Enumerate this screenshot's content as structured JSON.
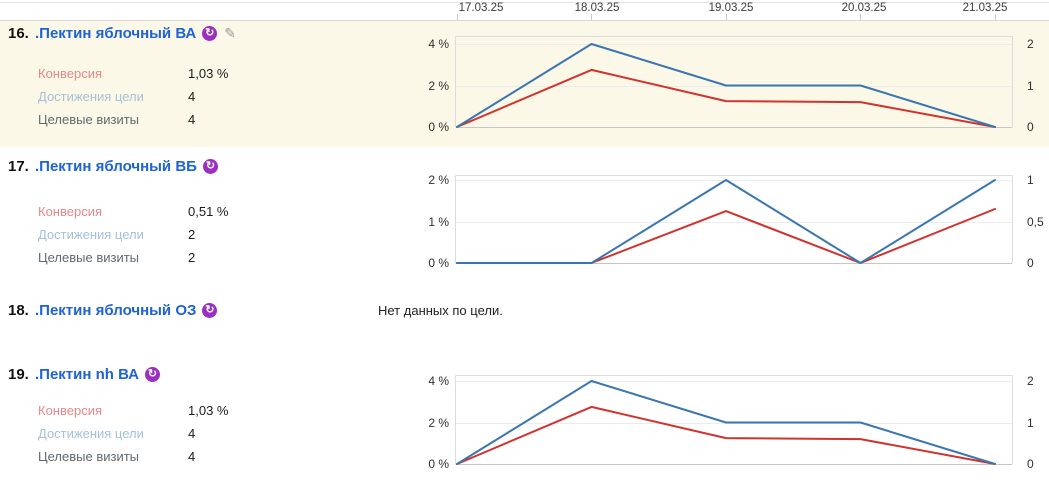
{
  "colors": {
    "title_link_blue": "#1e63d5",
    "conversion_line_red": "#d2322d",
    "reaches_line_blue": "#3a76b0",
    "conversion_label": "#e5888a",
    "reaches_label": "#a6c0d6",
    "visits_label": "#5f6a70",
    "highlighted_row_bg": "#fcf8e8",
    "goal_icon_bg": "#9d2fc0"
  },
  "icons": {
    "goal_glyph": "↻",
    "edit_glyph": "✎"
  },
  "dates": [
    "17.03.25",
    "18.03.25",
    "19.03.25",
    "20.03.25",
    "21.03.25"
  ],
  "rows": [
    {
      "index": "16.",
      "title": ".Пектин яблочный ВА",
      "metrics": [
        {
          "label": "Конверсия",
          "value": "1,03 %"
        },
        {
          "label": "Достижения цели",
          "value": "4"
        },
        {
          "label": "Целевые визиты",
          "value": "4"
        }
      ]
    },
    {
      "index": "17.",
      "title": ".Пектин яблочный ВБ",
      "metrics": [
        {
          "label": "Конверсия",
          "value": "0,51 %"
        },
        {
          "label": "Достижения цели",
          "value": "2"
        },
        {
          "label": "Целевые визиты",
          "value": "2"
        }
      ]
    },
    {
      "index": "18.",
      "title": ".Пектин яблочный ОЗ",
      "no_data_text": "Нет данных по цели."
    },
    {
      "index": "19.",
      "title": ".Пектин nh ВА",
      "metrics": [
        {
          "label": "Конверсия",
          "value": "1,03 %"
        },
        {
          "label": "Достижения цели",
          "value": "4"
        },
        {
          "label": "Целевые визиты",
          "value": "4"
        }
      ]
    }
  ],
  "chart_data": [
    {
      "type": "line",
      "x": [
        "17.03.25",
        "18.03.25",
        "19.03.25",
        "20.03.25",
        "21.03.25"
      ],
      "left_axis": {
        "ticks": [
          "0 %",
          "2 %",
          "4 %"
        ],
        "tick_values": [
          0,
          2,
          4
        ],
        "max": 4
      },
      "right_axis": {
        "ticks": [
          "0",
          "1",
          "2"
        ],
        "tick_values": [
          0,
          1,
          2
        ],
        "max": 2
      },
      "series": [
        {
          "name": "Конверсия",
          "axis": "left",
          "color": "#d2322d",
          "values": [
            0,
            2.75,
            1.25,
            1.2,
            0
          ]
        },
        {
          "name": "Достижения цели",
          "axis": "right",
          "color": "#3a76b0",
          "values": [
            0,
            2,
            1,
            1,
            0
          ]
        }
      ],
      "grid": true,
      "legend": "none"
    },
    {
      "type": "line",
      "x": [
        "17.03.25",
        "18.03.25",
        "19.03.25",
        "20.03.25",
        "21.03.25"
      ],
      "left_axis": {
        "ticks": [
          "0 %",
          "1 %",
          "2 %"
        ],
        "tick_values": [
          0,
          1,
          2
        ],
        "max": 2
      },
      "right_axis": {
        "ticks": [
          "0",
          "0,5",
          "1"
        ],
        "tick_values": [
          0,
          0.5,
          1
        ],
        "max": 1
      },
      "series": [
        {
          "name": "Конверсия",
          "axis": "left",
          "color": "#d2322d",
          "values": [
            0,
            0,
            1.25,
            0,
            1.3
          ]
        },
        {
          "name": "Достижения цели",
          "axis": "right",
          "color": "#3a76b0",
          "values": [
            0,
            0,
            1,
            0,
            1
          ]
        }
      ],
      "grid": true,
      "legend": "none"
    },
    {
      "type": "line",
      "x": [
        "17.03.25",
        "18.03.25",
        "19.03.25",
        "20.03.25",
        "21.03.25"
      ],
      "left_axis": {
        "ticks": [
          "0 %",
          "2 %",
          "4 %"
        ],
        "tick_values": [
          0,
          2,
          4
        ],
        "max": 4
      },
      "right_axis": {
        "ticks": [
          "0",
          "1",
          "2"
        ],
        "tick_values": [
          0,
          1,
          2
        ],
        "max": 2
      },
      "series": [
        {
          "name": "Конверсия",
          "axis": "left",
          "color": "#d2322d",
          "values": [
            0,
            2.75,
            1.25,
            1.2,
            0
          ]
        },
        {
          "name": "Достижения цели",
          "axis": "right",
          "color": "#3a76b0",
          "values": [
            0,
            2,
            1,
            1,
            0
          ]
        }
      ],
      "grid": true,
      "legend": "none"
    }
  ]
}
